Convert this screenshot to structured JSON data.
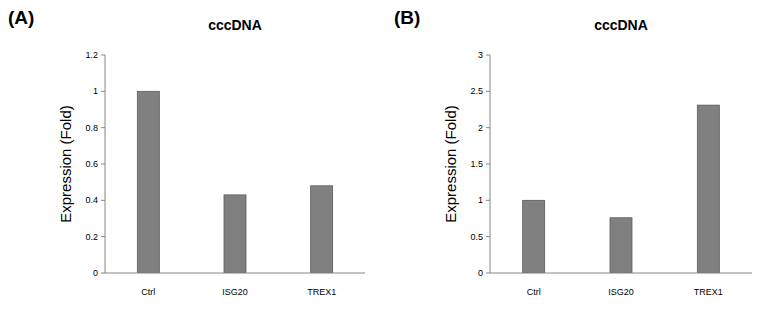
{
  "chart_data": [
    {
      "type": "bar",
      "title": "cccDNA",
      "annotations": [
        "(A)"
      ],
      "y_label": "Expression (Fold)",
      "categories": [
        "Ctrl",
        "ISG20",
        "TREX1"
      ],
      "values": [
        1,
        0.43,
        0.48
      ],
      "color": "#808080",
      "ylim": [
        0,
        1.2
      ],
      "yticks": [
        0,
        0.2,
        0.4,
        0.6,
        0.8,
        1,
        1.2
      ],
      "grid": false
    },
    {
      "type": "bar",
      "title": "cccDNA",
      "annotations": [
        "(B)"
      ],
      "y_label": "Expression (Fold)",
      "categories": [
        "Ctrl",
        "ISG20",
        "TREX1"
      ],
      "values": [
        1,
        0.76,
        2.31
      ],
      "color": "#808080",
      "ylim": [
        0,
        3
      ],
      "yticks": [
        0,
        0.5,
        1,
        1.5,
        2,
        2.5,
        3
      ],
      "grid": false
    }
  ]
}
